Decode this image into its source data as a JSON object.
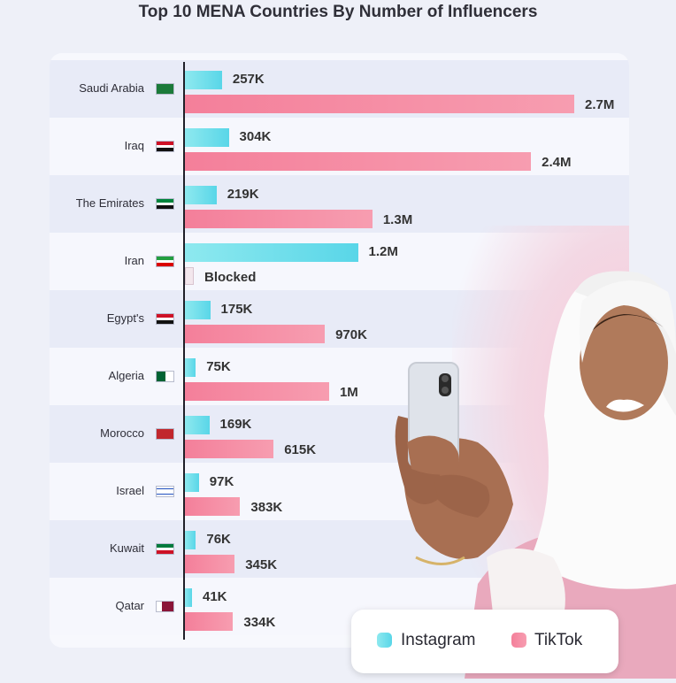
{
  "title": "Top 10 MENA Countries By Number of Influencers",
  "legend": {
    "instagram": "Instagram",
    "tiktok": "TikTok",
    "instagram_color": "#59d6e8",
    "tiktok_color": "#f4859e"
  },
  "chart_data": {
    "type": "bar",
    "orientation": "horizontal",
    "title": "Top 10 MENA Countries By Number of Influencers",
    "categories": [
      "Saudi Arabia",
      "Iraq",
      "The Emirates",
      "Iran",
      "Egypt's",
      "Algeria",
      "Morocco",
      "Israel",
      "Kuwait",
      "Qatar"
    ],
    "series": [
      {
        "name": "Instagram",
        "values": [
          257000,
          304000,
          219000,
          1200000,
          175000,
          75000,
          169000,
          97000,
          76000,
          41000
        ],
        "labels": [
          "257K",
          "304K",
          "219K",
          "1.2M",
          "175K",
          "75K",
          "169K",
          "97K",
          "76K",
          "41K"
        ]
      },
      {
        "name": "TikTok",
        "values": [
          2700000,
          2400000,
          1300000,
          null,
          970000,
          1000000,
          615000,
          383000,
          345000,
          334000
        ],
        "labels": [
          "2.7M",
          "2.4M",
          "1.3M",
          "Blocked",
          "970K",
          "1M",
          "615K",
          "383K",
          "345K",
          "334K"
        ]
      }
    ],
    "flags": [
      "saudi-arabia-flag-icon",
      "iraq-flag-icon",
      "uae-flag-icon",
      "iran-flag-icon",
      "egypt-flag-icon",
      "algeria-flag-icon",
      "morocco-flag-icon",
      "israel-flag-icon",
      "kuwait-flag-icon",
      "qatar-flag-icon"
    ],
    "grid": false,
    "legend_position": "bottom-right"
  }
}
